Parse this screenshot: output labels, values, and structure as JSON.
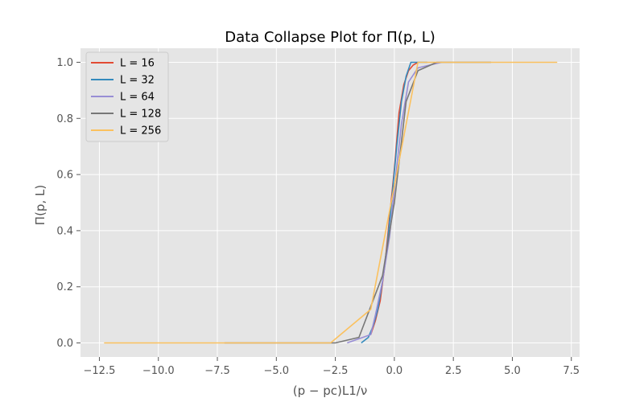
{
  "chart_data": {
    "type": "line",
    "title": "Data Collapse Plot for Π(p, L)",
    "xlabel": "(p − pc)L1/ν",
    "ylabel": "Π(p, L)",
    "xlim": [
      -13.3,
      7.85
    ],
    "ylim": [
      -0.05,
      1.05
    ],
    "xticks": [
      -12.5,
      -10.0,
      -7.5,
      -5.0,
      -2.5,
      0.0,
      2.5,
      5.0,
      7.5
    ],
    "xtick_labels": [
      "−12.5",
      "−10.0",
      "−7.5",
      "−5.0",
      "−2.5",
      "0.0",
      "2.5",
      "5.0",
      "7.5"
    ],
    "yticks": [
      0.0,
      0.2,
      0.4,
      0.6,
      0.8,
      1.0
    ],
    "ytick_labels": [
      "0.0",
      "0.2",
      "0.4",
      "0.6",
      "0.8",
      "1.0"
    ],
    "grid": true,
    "background": "#e5e5e5",
    "legend_position": "top-left",
    "series": [
      {
        "name": "L = 16",
        "color": "#e24a33",
        "x": [
          -1.0,
          -0.8,
          -0.6,
          -0.4,
          -0.2,
          0.0,
          0.2,
          0.4,
          0.6,
          0.8,
          1.0
        ],
        "y": [
          0.03,
          0.08,
          0.15,
          0.28,
          0.45,
          0.62,
          0.82,
          0.92,
          0.97,
          0.99,
          1.0
        ]
      },
      {
        "name": "L = 32",
        "color": "#348abd",
        "x": [
          -1.4,
          -1.1,
          -0.9,
          -0.7,
          -0.5,
          -0.3,
          -0.1,
          0.1,
          0.3,
          0.5,
          0.7,
          1.4
        ],
        "y": [
          0.0,
          0.02,
          0.06,
          0.12,
          0.22,
          0.35,
          0.52,
          0.7,
          0.86,
          0.95,
          1.0,
          1.0
        ]
      },
      {
        "name": "L = 64",
        "color": "#988ed5",
        "x": [
          -2.0,
          -1.0,
          -0.8,
          -0.5,
          -0.2,
          0.0,
          0.3,
          0.6,
          1.0,
          2.0
        ],
        "y": [
          0.0,
          0.03,
          0.1,
          0.22,
          0.38,
          0.55,
          0.78,
          0.93,
          0.98,
          1.0
        ]
      },
      {
        "name": "L = 128",
        "color": "#777777",
        "x": [
          -7.2,
          -2.5,
          -1.5,
          -0.5,
          0.0,
          0.5,
          1.0,
          1.8,
          4.1
        ],
        "y": [
          0.0,
          0.0,
          0.02,
          0.24,
          0.5,
          0.86,
          0.97,
          1.0,
          1.0
        ]
      },
      {
        "name": "L = 256",
        "color": "#fbc15e",
        "x": [
          -12.3,
          -2.7,
          -1.0,
          1.0,
          6.9
        ],
        "y": [
          0.0,
          0.0,
          0.12,
          1.0,
          1.0
        ]
      }
    ]
  }
}
